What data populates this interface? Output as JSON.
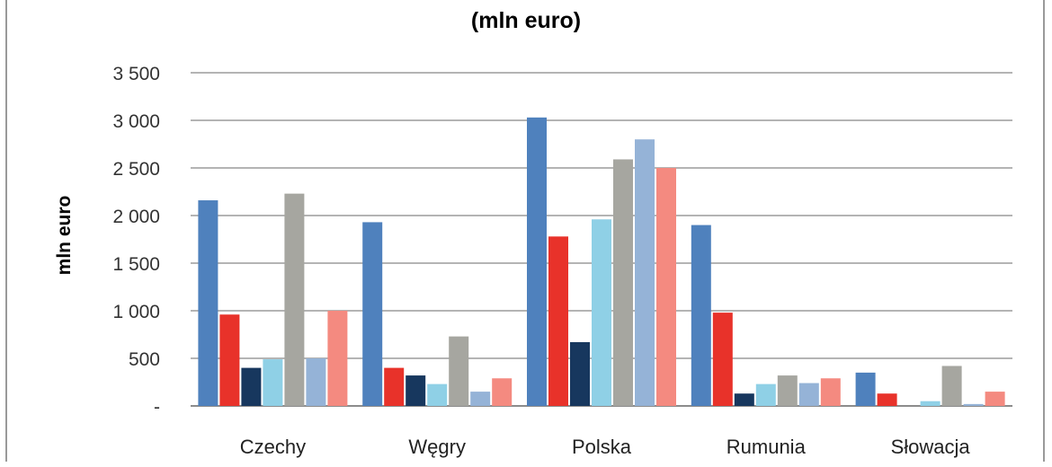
{
  "chart_data": {
    "type": "bar",
    "title": "(mln euro)",
    "ylabel": "mln euro",
    "xlabel": "",
    "categories": [
      "Czechy",
      "Węgry",
      "Polska",
      "Rumunia",
      "Słowacja"
    ],
    "ylim": [
      0,
      3500
    ],
    "yticks": [
      0,
      500,
      1000,
      1500,
      2000,
      2500,
      3000,
      3500
    ],
    "ytick_labels": [
      "-",
      "500",
      "1 000",
      "1 500",
      "2 000",
      "2 500",
      "3 000",
      "3 500"
    ],
    "grid": true,
    "legend": false,
    "series": [
      {
        "color": "#4f81bd",
        "values": [
          2160,
          1930,
          3030,
          1900,
          350
        ]
      },
      {
        "color": "#e8322a",
        "values": [
          960,
          400,
          1780,
          980,
          130
        ]
      },
      {
        "color": "#17375e",
        "values": [
          400,
          320,
          670,
          130,
          0
        ]
      },
      {
        "color": "#8fd0e6",
        "values": [
          490,
          230,
          1960,
          230,
          50
        ]
      },
      {
        "color": "#a6a6a0",
        "values": [
          2230,
          730,
          2590,
          320,
          420
        ]
      },
      {
        "color": "#95b3d7",
        "values": [
          500,
          150,
          2800,
          240,
          20
        ]
      },
      {
        "color": "#f48a80",
        "values": [
          1000,
          290,
          2500,
          290,
          150
        ]
      }
    ]
  }
}
